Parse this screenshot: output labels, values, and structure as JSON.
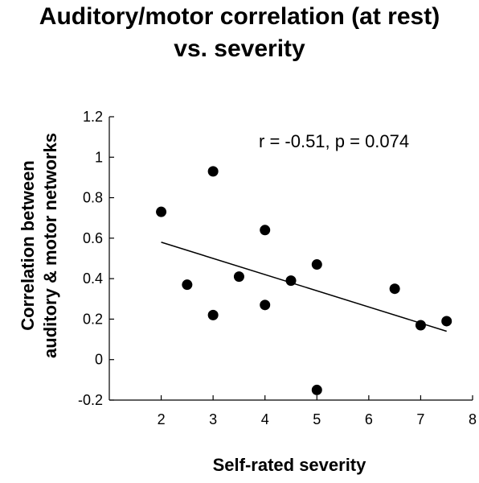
{
  "chart_data": {
    "type": "scatter",
    "title_lines": [
      "Auditory/motor correlation (at rest)",
      "vs. severity"
    ],
    "xlabel": "Self-rated severity",
    "ylabel_lines": [
      "Correlation between",
      "auditory & motor networks"
    ],
    "xlim": [
      1,
      8
    ],
    "ylim": [
      -0.2,
      1.2
    ],
    "x_ticks": [
      "2",
      "3",
      "4",
      "5",
      "6",
      "7",
      "8"
    ],
    "y_ticks": [
      "-0.2",
      "0",
      "0.2",
      "0.4",
      "0.6",
      "0.8",
      "1",
      "1.2"
    ],
    "annotation": "r = -0.51, p = 0.074",
    "points": [
      {
        "x": 2,
        "y": 0.73
      },
      {
        "x": 2.5,
        "y": 0.37
      },
      {
        "x": 3,
        "y": 0.93
      },
      {
        "x": 3,
        "y": 0.22
      },
      {
        "x": 3.5,
        "y": 0.41
      },
      {
        "x": 4,
        "y": 0.64
      },
      {
        "x": 4,
        "y": 0.27
      },
      {
        "x": 4.5,
        "y": 0.39
      },
      {
        "x": 5,
        "y": 0.47
      },
      {
        "x": 5,
        "y": -0.15
      },
      {
        "x": 6.5,
        "y": 0.35
      },
      {
        "x": 7,
        "y": 0.17
      },
      {
        "x": 7.5,
        "y": 0.19
      }
    ],
    "trendline": {
      "x": [
        2,
        7.5
      ],
      "y": [
        0.58,
        0.14
      ]
    },
    "grid": false,
    "legend": "none"
  }
}
